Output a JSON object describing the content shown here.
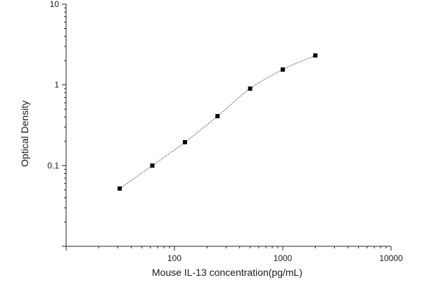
{
  "chart_data": {
    "type": "scatter",
    "title": "",
    "xlabel": "Mouse IL-13 concentration(pg/mL)",
    "ylabel": "Optical Density",
    "xscale": "log",
    "yscale": "log",
    "xlim": [
      10,
      10000
    ],
    "ylim": [
      0.01,
      10
    ],
    "x_ticks": [
      100,
      1000,
      10000
    ],
    "x_tick_labels": [
      "100",
      "1000",
      "10000"
    ],
    "y_ticks": [
      0.1,
      1,
      10
    ],
    "y_tick_labels": [
      "0.1",
      "1",
      "10"
    ],
    "grid": false,
    "legend": "none",
    "marker": "square",
    "colors": {
      "points": "#000000",
      "curve": "#333333",
      "axis": "#222222"
    },
    "series": [
      {
        "x": [
          31.25,
          62.5,
          125,
          250,
          500,
          1000,
          2000
        ],
        "y": [
          0.052,
          0.1,
          0.195,
          0.41,
          0.9,
          1.55,
          2.32
        ]
      }
    ],
    "fit_curve": "4-parameter logistic fit (dotted line)"
  }
}
